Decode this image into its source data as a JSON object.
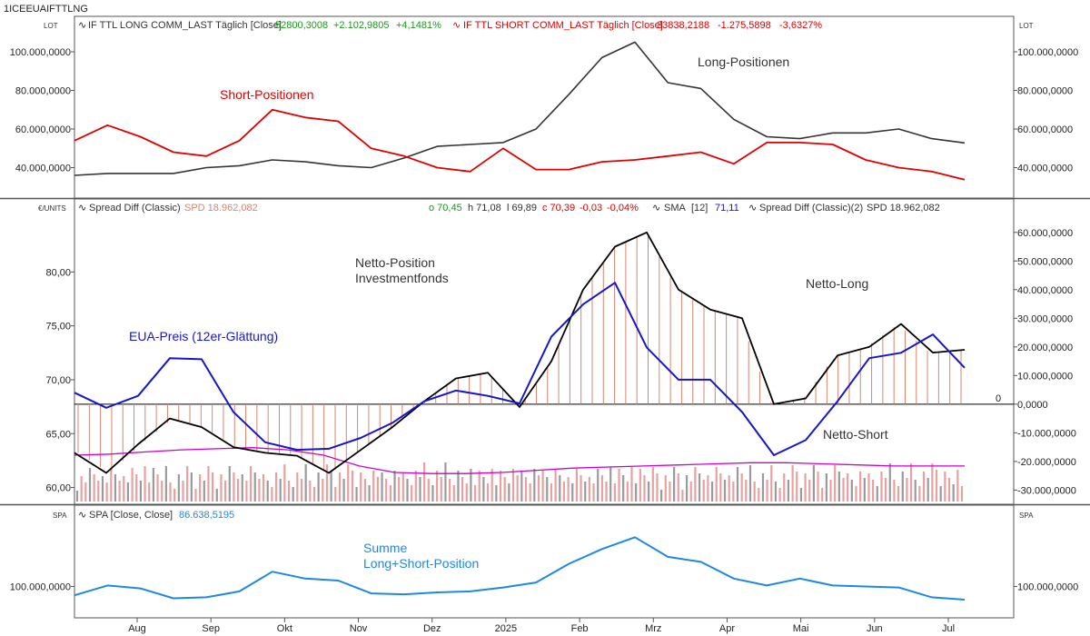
{
  "symbol": "1ICEEUAIFTTLNG",
  "colors": {
    "long": "#333333",
    "short": "#e00000",
    "green": "#1a9a1a",
    "blue": "#0000cc",
    "net": "#000000",
    "sma": "#1616cc",
    "magenta": "#cc00cc",
    "sum": "#1e88e5",
    "bar_pos": "#d9846e",
    "bar_neg": "#d9846e",
    "vol_pink": "#e8a0a0",
    "vol_gray": "#9a9a9a",
    "frame": "#555555"
  },
  "panel1": {
    "unit_label": "LOT",
    "legend_long": "IF TTL LONG COMM_LAST Täglich [Close]",
    "legend_long_value": "52800,3008",
    "legend_long_change": "+2.102,9805",
    "legend_long_pct": "+4,1481%",
    "legend_short": "IF TTL SHORT COMM_LAST Täglich [Close]",
    "legend_short_value": "33838,2188",
    "legend_short_change": "-1.275,5898",
    "legend_short_pct": "-3,6327%",
    "annotation_long": "Long-Positionen",
    "annotation_short": "Short-Positionen"
  },
  "panel2": {
    "unit_label": "€/UNITS",
    "legend_spread": "Spread Diff (Classic)",
    "legend_spread_value": "SPD 18.962,082",
    "ohlc_o": "o 70,45",
    "ohlc_h": "h 71,08",
    "ohlc_l": "l 69,89",
    "ohlc_c": "c 70,39",
    "ohlc_change": "-0,03",
    "ohlc_pct": "-0,04%",
    "legend_sma": "SMA",
    "legend_sma_param": "[12]",
    "legend_sma_value": "71,11",
    "legend_spread2": "Spread Diff (Classic)(2)",
    "legend_spread2_value": "SPD 18.962,082",
    "annotation_net_line1": "Netto-Position",
    "annotation_net_line2": "Investmentfonds",
    "annotation_netlong": "Netto-Long",
    "annotation_netshort": "Netto-Short",
    "annotation_eua": "EUA-Preis (12er-Glättung)",
    "zero_label": "0"
  },
  "panel3": {
    "unit_label": "SPA",
    "legend_spa": "SPA [Close, Close]",
    "legend_spa_value": "86.638,5195",
    "annotation_line1": "Summe",
    "annotation_line2": "Long+Short-Position"
  },
  "chart_data": [
    {
      "type": "line",
      "panel": "top",
      "x": [
        "2024-07-01",
        "2024-07-15",
        "2024-07-29",
        "2024-08-12",
        "2024-08-26",
        "2024-09-09",
        "2024-09-23",
        "2024-10-07",
        "2024-10-21",
        "2024-11-04",
        "2024-11-18",
        "2024-12-02",
        "2024-12-16",
        "2024-12-30",
        "2025-01-13",
        "2025-01-27",
        "2025-02-10",
        "2025-02-24",
        "2025-03-10",
        "2025-03-24",
        "2025-04-07",
        "2025-04-21",
        "2025-05-05",
        "2025-05-19",
        "2025-06-02",
        "2025-06-16",
        "2025-06-30",
        "2025-07-14"
      ],
      "series": [
        {
          "name": "IF TTL LONG COMM_LAST Täglich [Close]",
          "color": "long",
          "values": [
            36,
            37,
            37,
            37,
            40,
            41,
            44,
            43,
            41,
            40,
            45,
            51,
            52,
            53,
            60,
            78,
            97,
            105,
            84,
            81,
            65,
            56,
            55,
            58,
            58,
            60,
            55,
            52.8
          ]
        },
        {
          "name": "IF TTL SHORT COMM_LAST Täglich [Close]",
          "color": "short",
          "values": [
            54,
            62,
            56,
            48,
            46,
            54,
            70,
            66,
            64,
            50,
            46,
            40,
            38,
            50,
            39,
            39,
            43,
            44,
            46,
            48,
            42,
            53,
            53,
            52,
            44,
            40,
            38,
            33.8
          ]
        }
      ],
      "y_ticks": [
        40000000,
        60000000,
        80000000,
        100000000
      ],
      "y_tick_labels": [
        "40.000,0000",
        "60.000,0000",
        "80.000,0000",
        "100.000,0000"
      ],
      "ylim": [
        28000000,
        108000000
      ]
    },
    {
      "type": "line",
      "panel": "middle-left-axis",
      "series": [
        {
          "name": "SMA [12]",
          "color": "sma",
          "values": [
            68.8,
            67.4,
            68.5,
            72,
            71.9,
            67,
            64.2,
            63.5,
            63.6,
            64.6,
            66,
            68,
            69,
            68.5,
            67.8,
            74,
            77,
            79,
            73,
            70,
            70,
            67,
            63,
            64.4,
            68,
            72,
            72.5,
            74.2,
            71.11
          ]
        },
        {
          "name": "Spread Diff (Classic)(2)",
          "color": "magenta",
          "values": [
            63,
            63.1,
            63.3,
            63.5,
            63.6,
            63.7,
            63.5,
            63,
            62,
            61.4,
            61.3,
            61.3,
            61.4,
            61.6,
            61.8,
            61.9,
            62.0,
            62.1,
            62.2,
            62.3,
            62.3,
            62.2,
            62.1,
            62.0,
            62.0,
            62.0
          ]
        }
      ],
      "y_ticks": [
        60,
        65,
        70,
        75,
        80
      ],
      "y_tick_labels": [
        "60,00",
        "65,00",
        "70,00",
        "75,00",
        "80,00"
      ],
      "ylim": [
        58.7,
        85
      ]
    },
    {
      "type": "bar",
      "panel": "middle-right-axis",
      "series": [
        {
          "name": "Spread Diff (Classic)",
          "color": "net",
          "values": [
            -17,
            -24,
            -14,
            -5,
            -8,
            -15,
            -17,
            -18,
            -24,
            -16,
            -8,
            1,
            9,
            11,
            -1,
            15,
            40,
            55,
            60,
            40,
            33,
            30,
            0,
            2,
            17,
            20,
            28,
            18,
            19
          ]
        }
      ],
      "y_ticks": [
        -30000000,
        -20000000,
        -10000000,
        0,
        10000000,
        20000000,
        30000000,
        40000000,
        50000000,
        60000000
      ],
      "y_tick_labels": [
        "-30.000,0000",
        "-20.000,0000",
        "-10.000,0000",
        "0,0000",
        "10.000,0000",
        "20.000,0000",
        "30.000,0000",
        "40.000,0000",
        "50.000,0000",
        "60.000,0000"
      ],
      "ylim": [
        -34000000,
        65000000
      ]
    },
    {
      "type": "line",
      "panel": "bottom",
      "series": [
        {
          "name": "SPA [Close, Close]",
          "color": "sum",
          "values": [
            91,
            101,
            98,
            88,
            89,
            95,
            115,
            108,
            106,
            93,
            92,
            94,
            95,
            99,
            104,
            123,
            138,
            150,
            130,
            125,
            108,
            101,
            108,
            101,
            100,
            99,
            89,
            86.6
          ]
        }
      ],
      "y_ticks": [
        100000000
      ],
      "y_tick_labels": [
        "100.000,0000"
      ],
      "ylim": [
        70000000,
        165000000
      ]
    }
  ],
  "x_axis": {
    "months": [
      "Aug",
      "Sep",
      "Okt",
      "Nov",
      "Dez",
      "2025",
      "Feb",
      "Mrz",
      "Apr",
      "Mai",
      "Jun",
      "Jul"
    ]
  }
}
